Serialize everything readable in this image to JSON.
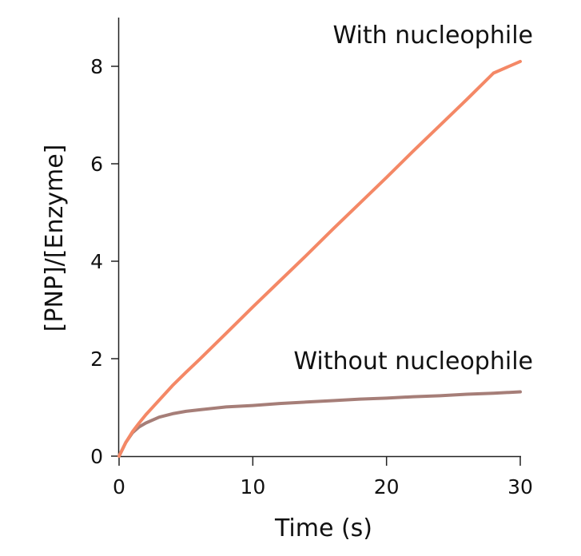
{
  "chart_data": {
    "type": "line",
    "xlabel": "Time (s)",
    "ylabel": "[PNP]/[Enzyme]",
    "xlim": [
      0,
      30
    ],
    "ylim": [
      0,
      9
    ],
    "xticks": [
      0,
      10,
      20,
      30
    ],
    "yticks": [
      0,
      2,
      4,
      6,
      8
    ],
    "grid": false,
    "legend": "none",
    "series": [
      {
        "name": "With nucleophile",
        "color": "#f48866",
        "x": [
          0,
          0.5,
          1,
          1.5,
          2,
          3,
          4,
          5,
          6,
          8,
          10,
          12,
          14,
          16,
          18,
          20,
          22,
          24,
          26,
          28,
          30
        ],
        "y": [
          0,
          0.28,
          0.5,
          0.68,
          0.85,
          1.15,
          1.45,
          1.72,
          1.98,
          2.52,
          3.06,
          3.59,
          4.12,
          4.66,
          5.19,
          5.72,
          6.26,
          6.79,
          7.32,
          7.86,
          8.1
        ]
      },
      {
        "name": "Without nucleophile",
        "color": "#a67e78",
        "x": [
          0,
          0.5,
          1,
          1.5,
          2,
          3,
          4,
          5,
          6,
          8,
          10,
          12,
          14,
          16,
          18,
          20,
          22,
          24,
          26,
          28,
          30
        ],
        "y": [
          0,
          0.28,
          0.48,
          0.6,
          0.68,
          0.8,
          0.87,
          0.92,
          0.95,
          1.01,
          1.04,
          1.08,
          1.11,
          1.14,
          1.17,
          1.19,
          1.22,
          1.24,
          1.27,
          1.29,
          1.32
        ]
      }
    ]
  }
}
